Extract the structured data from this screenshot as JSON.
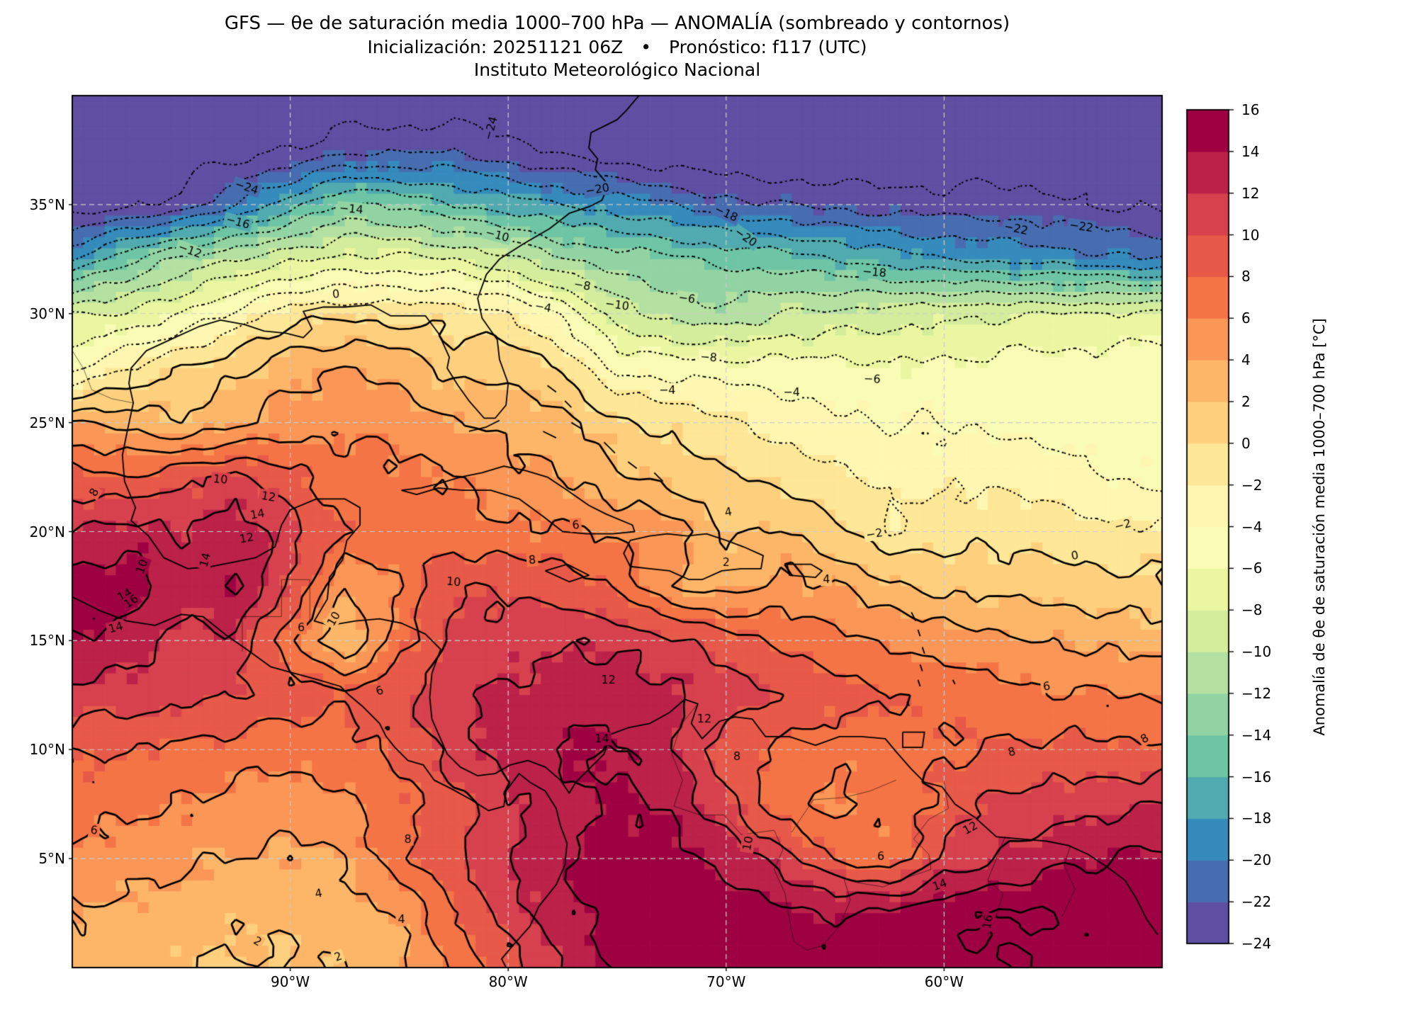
{
  "title": {
    "line1": "GFS — θe de saturación media 1000–700 hPa — ANOMALÍA (sombreado y contornos)",
    "line2": "Inicialización: 20251121 06Z  •  Pronóstico: f117 (UTC)",
    "line3": "Instituto Meteorológico Nacional"
  },
  "axes": {
    "lat_ticks": [
      {
        "label": "35°N",
        "lat": 35
      },
      {
        "label": "30°N",
        "lat": 30
      },
      {
        "label": "25°N",
        "lat": 25
      },
      {
        "label": "20°N",
        "lat": 20
      },
      {
        "label": "15°N",
        "lat": 15
      },
      {
        "label": "10°N",
        "lat": 10
      },
      {
        "label": "5°N",
        "lat": 5
      }
    ],
    "lon_ticks": [
      {
        "label": "90°W",
        "lon": -90
      },
      {
        "label": "80°W",
        "lon": -80
      },
      {
        "label": "70°W",
        "lon": -70
      },
      {
        "label": "60°W",
        "lon": -60
      }
    ]
  },
  "colorbar": {
    "title": "Anomalía de θe de saturación media 1000–700 hPa [°C]",
    "tick_values": [
      16,
      14,
      12,
      10,
      8,
      6,
      4,
      2,
      0,
      -2,
      -4,
      -6,
      -8,
      -10,
      -12,
      -14,
      -16,
      -18,
      -20,
      -22,
      -24
    ],
    "tick_labels": [
      "16",
      "14",
      "12",
      "10",
      "8",
      "6",
      "4",
      "2",
      "0",
      "−2",
      "−4",
      "−6",
      "−8",
      "−10",
      "−12",
      "−14",
      "−16",
      "−18",
      "−20",
      "−22",
      "−24"
    ]
  },
  "chart_data": {
    "type": "heatmap",
    "title": "GFS θe saturation anomaly 1000–700 hPa, shading and contours",
    "units": "°C",
    "colormap_name": "Spectral_r",
    "lon_range": [
      -100,
      -50
    ],
    "lat_range": [
      0,
      40
    ],
    "grid_step_deg": 2.5,
    "levels": [
      -24,
      -22,
      -20,
      -18,
      -16,
      -14,
      -12,
      -10,
      -8,
      -6,
      -4,
      -2,
      0,
      2,
      4,
      6,
      8,
      10,
      12,
      14,
      16
    ],
    "contour_negative_style": "dotted",
    "contour_positive_style": "solid",
    "gridline_color": "#cccccc",
    "bin_colors": [
      "#5E4FA2",
      "#476DB0",
      "#358BBC",
      "#50AAAF",
      "#6DC5A5",
      "#92D3A4",
      "#B4E1A2",
      "#D3ED9C",
      "#EBF7A0",
      "#F8FCB5",
      "#FFF7B1",
      "#FEE796",
      "#FED07E",
      "#FDB668",
      "#FA9656",
      "#F57446",
      "#E75948",
      "#D7414E",
      "#BB2149",
      "#9E0142"
    ],
    "lons": [
      -100,
      -97.5,
      -95,
      -92.5,
      -90,
      -87.5,
      -85,
      -82.5,
      -80,
      -77.5,
      -75,
      -72.5,
      -70,
      -67.5,
      -65,
      -62.5,
      -60,
      -57.5,
      -55,
      -52.5,
      -50
    ],
    "lats": [
      40,
      37.5,
      35,
      32.5,
      30,
      27.5,
      25,
      22.5,
      20,
      17.5,
      15,
      12.5,
      10,
      7.5,
      5,
      2.5,
      0
    ],
    "values": [
      [
        -28,
        -27.5,
        -27,
        -27,
        -26.5,
        -26,
        -26,
        -26,
        -26.5,
        -27,
        -27,
        -27,
        -27,
        -27,
        -27,
        -26.8,
        -26.6,
        -26.4,
        -26.2,
        -26,
        -26
      ],
      [
        -27,
        -26,
        -25,
        -25,
        -24,
        -22.5,
        -22.5,
        -22,
        -23.5,
        -24.5,
        -25.5,
        -26,
        -26.2,
        -26.3,
        -26.3,
        -26.2,
        -26,
        -25.8,
        -25.5,
        -25.2,
        -25
      ],
      [
        -25.5,
        -24.5,
        -23.5,
        -20,
        -17,
        -13.5,
        -14.5,
        -16,
        -17,
        -18,
        -19,
        -20,
        -21.5,
        -22,
        -22.5,
        -23,
        -23,
        -23.2,
        -23.4,
        -24.2,
        -24.5
      ],
      [
        -18,
        -14.5,
        -11.5,
        -10,
        -8.5,
        -7.5,
        -7.5,
        -8,
        -9.5,
        -12,
        -13,
        -13.5,
        -14.5,
        -15,
        -16,
        -17,
        -18,
        -18.5,
        -19,
        -19.5,
        -20
      ],
      [
        -8,
        -7.8,
        -6,
        -3.5,
        -0.8,
        -0.5,
        -0.8,
        -0.7,
        -1.8,
        -4.5,
        -9,
        -11,
        -11.5,
        -10,
        -9.5,
        -9,
        -8.5,
        -8.2,
        -8,
        -7.8,
        -7.5
      ],
      [
        -4.5,
        -2,
        0,
        1.5,
        3.5,
        4,
        3.5,
        1,
        1.5,
        -0.3,
        -4.5,
        -4.8,
        -5,
        -5.2,
        -5,
        -5.8,
        -5.5,
        -5.2,
        -5,
        -4.8,
        -4.6
      ],
      [
        4,
        3.5,
        2,
        3.5,
        5,
        5.5,
        5,
        4,
        3.5,
        2.5,
        0.5,
        -0.5,
        -1.5,
        -3,
        -3.5,
        -4,
        -4.2,
        -4.5,
        -4.7,
        -5,
        -5
      ],
      [
        9,
        8,
        9.5,
        10.5,
        8.5,
        7,
        6.5,
        6,
        4.5,
        4,
        2.5,
        1.5,
        0.5,
        -0.5,
        -1.5,
        -2.5,
        -2.5,
        -2.6,
        -2.8,
        -4,
        -4.5
      ],
      [
        12,
        13,
        12,
        13.5,
        11,
        8,
        7.5,
        7,
        6.5,
        6.2,
        5.5,
        5,
        1.5,
        2.5,
        0.5,
        -2,
        -0.5,
        -0.8,
        -1,
        -1.5,
        -1.6
      ],
      [
        15,
        15.5,
        13,
        14.2,
        10,
        4,
        6,
        10,
        9.5,
        9,
        7.5,
        4,
        3,
        4.5,
        4,
        2.5,
        1.5,
        1.2,
        1,
        0.8,
        0.5
      ],
      [
        14,
        13,
        11,
        11.5,
        6.5,
        2,
        7,
        10.5,
        11,
        12,
        11.5,
        10.5,
        9,
        7.5,
        6.5,
        5.5,
        5,
        4.5,
        4,
        3.5,
        3
      ],
      [
        11,
        11.5,
        10.5,
        10,
        9,
        8.5,
        9.5,
        11.5,
        12.5,
        13,
        13.5,
        12.5,
        11.5,
        10,
        9,
        8,
        7.5,
        7,
        6.2,
        6,
        5.5
      ],
      [
        8.5,
        8,
        7.5,
        7,
        6.5,
        7,
        8.5,
        11,
        13,
        14.5,
        14,
        12.5,
        8.5,
        7.5,
        6.5,
        7,
        7.8,
        8.2,
        8.5,
        8.3,
        8.5
      ],
      [
        7,
        6.5,
        6,
        5.5,
        5,
        5.5,
        7.5,
        9,
        11.5,
        13,
        14.5,
        13.5,
        10.5,
        6.5,
        5.5,
        6.5,
        8.5,
        10.5,
        11,
        11.5,
        12
      ],
      [
        5.5,
        5,
        4.5,
        4,
        3.5,
        4,
        7.5,
        9.5,
        12,
        14,
        15,
        15,
        13.5,
        11,
        8,
        6.5,
        10.5,
        12,
        13.5,
        14,
        14.5
      ],
      [
        4,
        3.5,
        3,
        2.5,
        2.5,
        3,
        4,
        8,
        11,
        13.5,
        15,
        15.5,
        15,
        14.5,
        14,
        14.5,
        15.5,
        16.2,
        16,
        15.5,
        15
      ],
      [
        3,
        2.5,
        2,
        1.8,
        1.8,
        2.2,
        3.5,
        6.5,
        9,
        12,
        14.5,
        15.5,
        15.5,
        15,
        14.5,
        15,
        15.5,
        16,
        15.5,
        15,
        15.5
      ]
    ],
    "contour_labels": [
      {
        "t": "−24",
        "lon": -92,
        "lat": 35.8,
        "r": 18
      },
      {
        "t": "−24",
        "lon": -80.8,
        "lat": 38.5,
        "r": -75
      },
      {
        "t": "−22",
        "lon": -56.7,
        "lat": 33.9,
        "r": 12
      },
      {
        "t": "−22",
        "lon": -53.7,
        "lat": 34.0,
        "r": 8
      },
      {
        "t": "−20",
        "lon": -69.1,
        "lat": 33.5,
        "r": 35
      },
      {
        "t": "−20",
        "lon": -75.9,
        "lat": 35.7,
        "r": -10
      },
      {
        "t": "−18",
        "lon": -63.2,
        "lat": 31.9,
        "r": 5
      },
      {
        "t": "−18",
        "lon": -70.0,
        "lat": 34.6,
        "r": 25
      },
      {
        "t": "−16",
        "lon": -92.4,
        "lat": 34.2,
        "r": 15
      },
      {
        "t": "−14",
        "lon": -87.2,
        "lat": 34.8,
        "r": 5
      },
      {
        "t": "−12",
        "lon": -94.6,
        "lat": 32.9,
        "r": 20
      },
      {
        "t": "−10",
        "lon": -75.0,
        "lat": 30.4,
        "r": 8
      },
      {
        "t": "−10",
        "lon": -80.5,
        "lat": 33.6,
        "r": 15
      },
      {
        "t": "−8",
        "lon": -70.8,
        "lat": 28.0,
        "r": 5
      },
      {
        "t": "−8",
        "lon": -76.6,
        "lat": 31.3,
        "r": 10
      },
      {
        "t": "−6",
        "lon": -63.3,
        "lat": 27.0,
        "r": 3
      },
      {
        "t": "−6",
        "lon": -71.8,
        "lat": 30.7,
        "r": 8
      },
      {
        "t": "−4",
        "lon": -72.7,
        "lat": 26.5,
        "r": 0
      },
      {
        "t": "−4",
        "lon": -67.0,
        "lat": 26.4,
        "r": 0
      },
      {
        "t": "−4",
        "lon": -78.4,
        "lat": 30.3,
        "r": 10
      },
      {
        "t": "−2",
        "lon": -63.2,
        "lat": 19.9,
        "r": -10
      },
      {
        "t": "−2",
        "lon": -51.8,
        "lat": 20.3,
        "r": -15
      },
      {
        "t": "0",
        "lon": -87.9,
        "lat": 30.9,
        "r": -5
      },
      {
        "t": "0",
        "lon": -54.0,
        "lat": 18.9,
        "r": -10
      },
      {
        "t": "2",
        "lon": -91.5,
        "lat": 1.2,
        "r": 30
      },
      {
        "t": "2",
        "lon": -87.8,
        "lat": 0.5,
        "r": -20
      },
      {
        "t": "2",
        "lon": -70.0,
        "lat": 18.6,
        "r": 0
      },
      {
        "t": "4",
        "lon": -84.9,
        "lat": 2.2,
        "r": 0
      },
      {
        "t": "4",
        "lon": -65.4,
        "lat": 17.8,
        "r": 0
      },
      {
        "t": "4",
        "lon": -69.9,
        "lat": 20.9,
        "r": -10
      },
      {
        "t": "4",
        "lon": -88.7,
        "lat": 3.4,
        "r": -10
      },
      {
        "t": "6",
        "lon": -99.0,
        "lat": 6.3,
        "r": 5
      },
      {
        "t": "6",
        "lon": -76.9,
        "lat": 20.3,
        "r": -5
      },
      {
        "t": "6",
        "lon": -62.9,
        "lat": 5.1,
        "r": 0
      },
      {
        "t": "6",
        "lon": -55.3,
        "lat": 12.9,
        "r": -8
      },
      {
        "t": "6",
        "lon": -89.5,
        "lat": 15.6,
        "r": 0
      },
      {
        "t": "6",
        "lon": -85.9,
        "lat": 12.7,
        "r": -20
      },
      {
        "t": "8",
        "lon": -78.9,
        "lat": 18.7,
        "r": -5
      },
      {
        "t": "8",
        "lon": -84.6,
        "lat": 5.9,
        "r": 0
      },
      {
        "t": "8",
        "lon": -99.0,
        "lat": 21.8,
        "r": -60
      },
      {
        "t": "8",
        "lon": -56.9,
        "lat": 9.9,
        "r": -15
      },
      {
        "t": "8",
        "lon": -69.5,
        "lat": 9.7,
        "r": 0
      },
      {
        "t": "8",
        "lon": -50.8,
        "lat": 10.5,
        "r": -30
      },
      {
        "t": "10",
        "lon": -93.2,
        "lat": 22.4,
        "r": 5
      },
      {
        "t": "10",
        "lon": -82.5,
        "lat": 17.7,
        "r": 5
      },
      {
        "t": "10",
        "lon": -69.0,
        "lat": 5.7,
        "r": -80
      },
      {
        "t": "10",
        "lon": -96.8,
        "lat": 18.4,
        "r": -70
      },
      {
        "t": "10",
        "lon": -88.0,
        "lat": 16.0,
        "r": -60
      },
      {
        "t": "12",
        "lon": -91.0,
        "lat": 21.6,
        "r": 10
      },
      {
        "t": "12",
        "lon": -75.4,
        "lat": 13.2,
        "r": 0
      },
      {
        "t": "12",
        "lon": -71.0,
        "lat": 11.4,
        "r": 0
      },
      {
        "t": "12",
        "lon": -58.8,
        "lat": 6.4,
        "r": -30
      },
      {
        "t": "12",
        "lon": -92.0,
        "lat": 19.7,
        "r": -10
      },
      {
        "t": "14",
        "lon": -91.5,
        "lat": 20.8,
        "r": -10
      },
      {
        "t": "14",
        "lon": -75.7,
        "lat": 10.5,
        "r": 0
      },
      {
        "t": "14",
        "lon": -98.0,
        "lat": 15.6,
        "r": -15
      },
      {
        "t": "14",
        "lon": -93.9,
        "lat": 18.7,
        "r": -75
      },
      {
        "t": "14",
        "lon": -60.2,
        "lat": 3.8,
        "r": -20
      },
      {
        "t": "14",
        "lon": -97.6,
        "lat": 17.1,
        "r": -30
      },
      {
        "t": "16",
        "lon": -97.3,
        "lat": 16.8,
        "r": -35
      },
      {
        "t": "16",
        "lon": -58.0,
        "lat": 2.1,
        "r": -80
      }
    ]
  }
}
